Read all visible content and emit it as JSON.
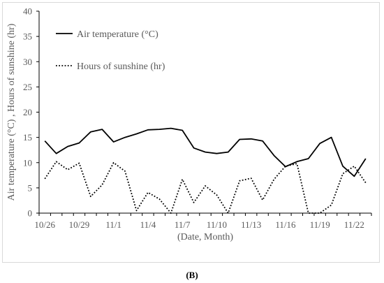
{
  "panel_label": "(B)",
  "chart_data": {
    "type": "line",
    "xlabel": "(Date, Month)",
    "ylabel": "Air temperature (°C) , Hours of sunshine (hr)",
    "ylim": [
      0,
      40
    ],
    "yticks": [
      0,
      5,
      10,
      15,
      20,
      25,
      30,
      35,
      40
    ],
    "x_dates": [
      "10/26",
      "10/27",
      "10/28",
      "10/29",
      "10/30",
      "10/31",
      "11/1",
      "11/2",
      "11/3",
      "11/4",
      "11/5",
      "11/6",
      "11/7",
      "11/8",
      "11/9",
      "11/10",
      "11/11",
      "11/12",
      "11/13",
      "11/14",
      "11/15",
      "11/16",
      "11/17",
      "11/18",
      "11/19",
      "11/20",
      "11/21",
      "11/22",
      "11/23"
    ],
    "xtick_labels": [
      "10/26",
      "10/29",
      "11/1",
      "11/4",
      "11/7",
      "11/10",
      "11/13",
      "11/16",
      "11/19",
      "11/22"
    ],
    "grid": false,
    "legend_position": "top-left",
    "series": [
      {
        "name": "Air temperature (°C)",
        "style": "solid",
        "color": "#000000",
        "values": [
          14.3,
          11.8,
          13.2,
          13.9,
          16.1,
          16.6,
          14.1,
          15.0,
          15.7,
          16.5,
          16.6,
          16.8,
          16.4,
          12.9,
          12.1,
          11.8,
          12.1,
          14.6,
          14.7,
          14.3,
          11.4,
          9.2,
          10.2,
          10.8,
          13.8,
          15.0,
          9.3,
          7.3,
          10.8
        ]
      },
      {
        "name": "Hours of sunshine (hr)",
        "style": "dotted",
        "color": "#000000",
        "values": [
          6.8,
          10.2,
          8.6,
          9.9,
          3.3,
          5.6,
          10.0,
          8.3,
          0.5,
          4.1,
          2.8,
          0.0,
          6.7,
          2.1,
          5.4,
          3.6,
          0.0,
          6.4,
          6.9,
          2.6,
          6.7,
          9.3,
          9.8,
          0.0,
          0.0,
          1.6,
          7.8,
          9.3,
          6.0
        ]
      }
    ]
  }
}
